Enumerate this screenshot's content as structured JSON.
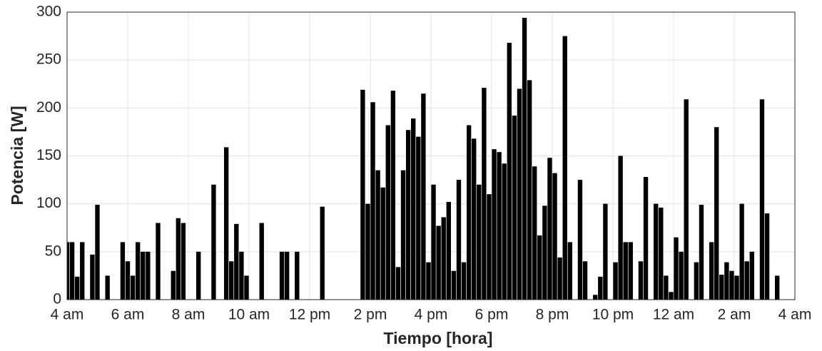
{
  "chart_data": {
    "type": "bar",
    "xlabel": "Tiempo [hora]",
    "ylabel": "Potencia [W]",
    "color": "#000000",
    "grid": true,
    "x": [
      0,
      10,
      20,
      30,
      50,
      60,
      80,
      110,
      120,
      130,
      140,
      150,
      160,
      180,
      210,
      220,
      230,
      260,
      290,
      315,
      325,
      335,
      345,
      355,
      385,
      425,
      435,
      455,
      505,
      585,
      595,
      605,
      615,
      625,
      635,
      645,
      655,
      665,
      675,
      685,
      695,
      705,
      715,
      725,
      735,
      745,
      755,
      765,
      775,
      785,
      795,
      805,
      815,
      825,
      835,
      845,
      855,
      865,
      875,
      885,
      895,
      905,
      915,
      925,
      935,
      945,
      955,
      965,
      975,
      985,
      995,
      1015,
      1025,
      1045,
      1055,
      1065,
      1085,
      1095,
      1105,
      1115,
      1135,
      1145,
      1165,
      1175,
      1185,
      1195,
      1205,
      1215,
      1225,
      1245,
      1255,
      1275,
      1285,
      1295,
      1305,
      1315,
      1325,
      1335,
      1345,
      1355,
      1375,
      1385,
      1405
    ],
    "values": [
      60,
      60,
      24,
      60,
      47,
      99,
      25,
      60,
      40,
      25,
      60,
      50,
      50,
      80,
      30,
      85,
      80,
      50,
      120,
      159,
      40,
      79,
      50,
      25,
      80,
      50,
      50,
      50,
      97,
      219,
      100,
      206,
      135,
      117,
      182,
      218,
      34,
      135,
      177,
      189,
      170,
      215,
      39,
      120,
      77,
      86,
      102,
      30,
      125,
      39,
      182,
      168,
      120,
      221,
      110,
      157,
      154,
      142,
      268,
      192,
      220,
      294,
      229,
      139,
      67,
      98,
      148,
      132,
      44,
      275,
      60,
      125,
      40,
      5,
      24,
      100,
      39,
      150,
      60,
      60,
      40,
      128,
      100,
      96,
      25,
      8,
      65,
      50,
      209,
      39,
      99,
      60,
      180,
      26,
      39,
      30,
      25,
      100,
      40,
      50,
      209,
      90,
      25
    ],
    "xlim": [
      0,
      1440
    ],
    "xticks": [
      {
        "value": 0,
        "label": "4 am"
      },
      {
        "value": 120,
        "label": "6 am"
      },
      {
        "value": 240,
        "label": "8 am"
      },
      {
        "value": 360,
        "label": "10 am"
      },
      {
        "value": 480,
        "label": "12 pm"
      },
      {
        "value": 600,
        "label": "2 pm"
      },
      {
        "value": 720,
        "label": "4 pm"
      },
      {
        "value": 840,
        "label": "6 pm"
      },
      {
        "value": 960,
        "label": "8 pm"
      },
      {
        "value": 1080,
        "label": "10 pm"
      },
      {
        "value": 1200,
        "label": "12 am"
      },
      {
        "value": 1320,
        "label": "2 am"
      },
      {
        "value": 1440,
        "label": "4 am"
      }
    ],
    "ylim": [
      0,
      300
    ],
    "yticks": [
      0,
      50,
      100,
      150,
      200,
      250,
      300
    ]
  }
}
